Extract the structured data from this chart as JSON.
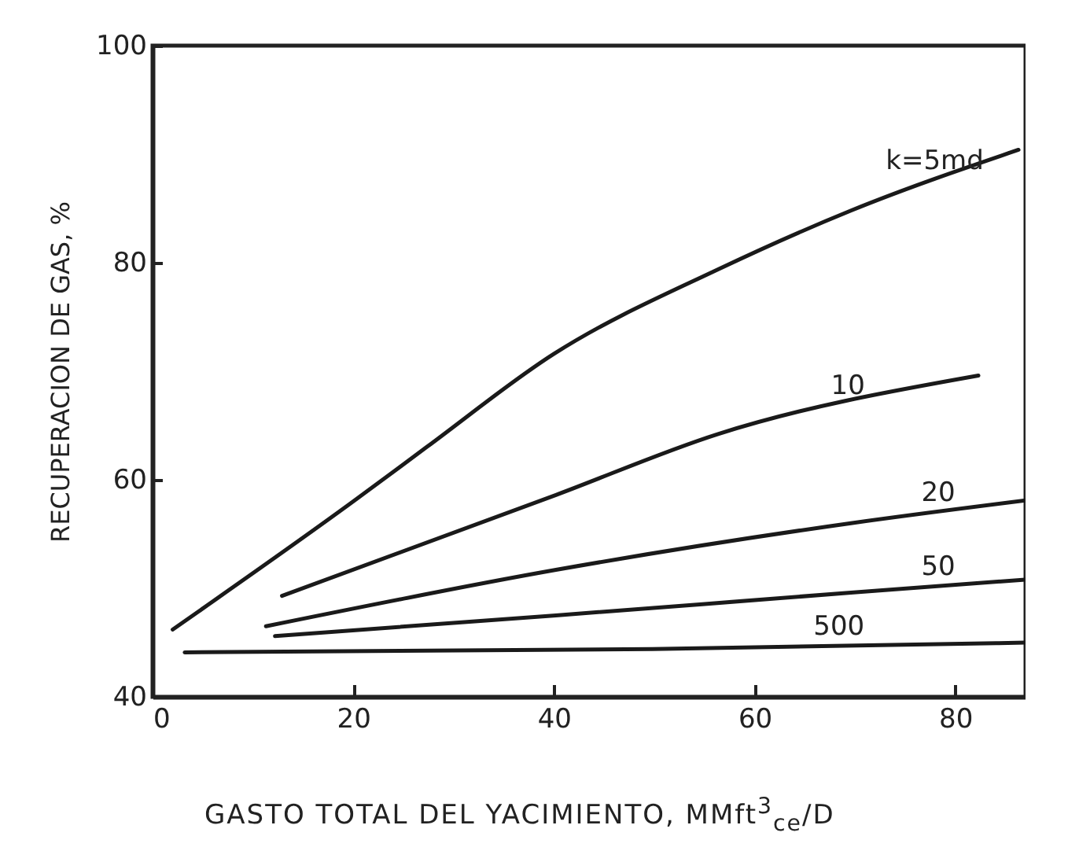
{
  "chart_data": {
    "type": "line",
    "xlabel": "GASTO TOTAL DEL YACIMIENTO, MMft$^{3}$$_{ce}$/D",
    "ylabel": "RECUPERACION DE GAS, %",
    "xlim": [
      0,
      87
    ],
    "ylim": [
      40,
      100
    ],
    "xticks": [
      0,
      20,
      40,
      60,
      80
    ],
    "yticks": [
      40,
      60,
      80,
      100
    ],
    "grid": false,
    "marker": "none",
    "line_style": "solid",
    "series": [
      {
        "name": "k=5md",
        "color": "#1a1a1a",
        "x": [
          2,
          20,
          27.3,
          40,
          56.4,
          69.6,
          86.3
        ],
        "values": [
          46.2,
          58,
          63,
          71.6,
          79.4,
          84.8,
          90.4
        ]
      },
      {
        "name": "10",
        "color": "#1a1a1a",
        "x": [
          12.9,
          40.2,
          56.3,
          82.3
        ],
        "values": [
          49.3,
          58.6,
          64.2,
          69.6
        ]
      },
      {
        "name": "20",
        "color": "#1a1a1a",
        "x": [
          11.3,
          40.2,
          69.6,
          87
        ],
        "values": [
          46.5,
          51.7,
          56,
          58.1
        ]
      },
      {
        "name": "50",
        "color": "#1a1a1a",
        "x": [
          12.2,
          40.2,
          69.6,
          87
        ],
        "values": [
          45.6,
          47.5,
          49.6,
          50.8
        ]
      },
      {
        "name": "500",
        "color": "#1a1a1a",
        "x": [
          3.2,
          49.8,
          87
        ],
        "values": [
          44.1,
          44.4,
          45
        ]
      }
    ]
  }
}
